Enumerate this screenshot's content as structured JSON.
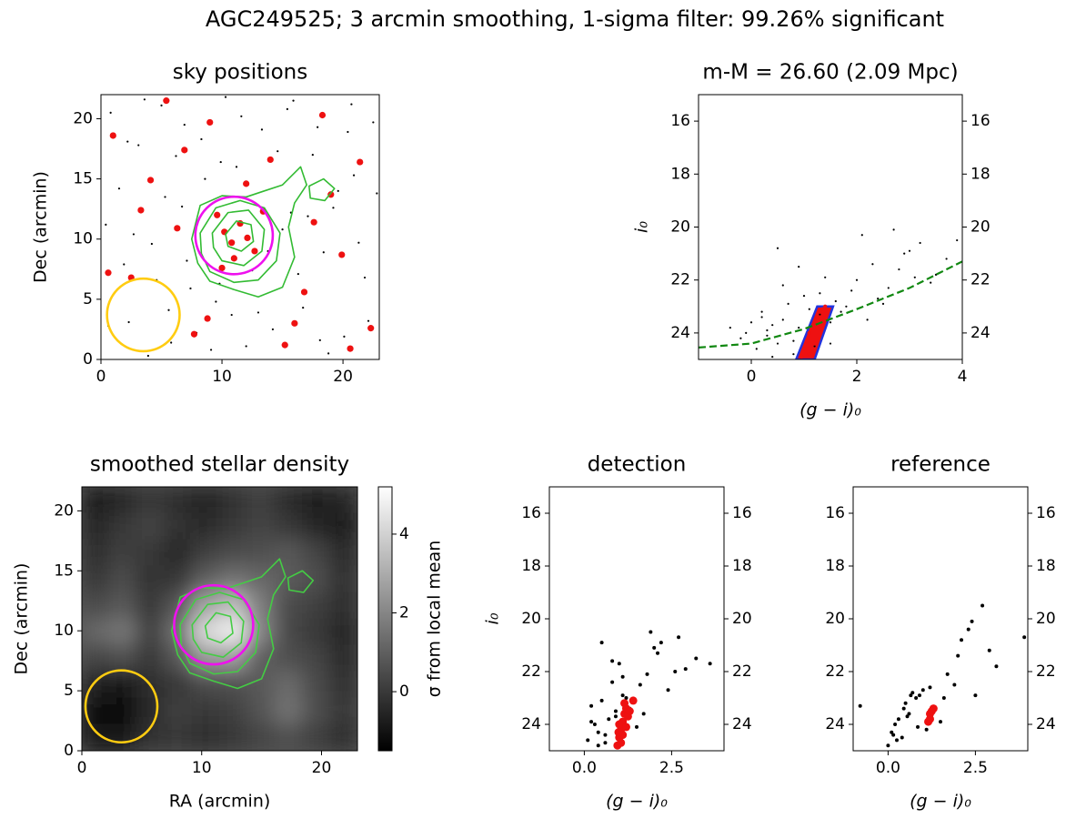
{
  "title": "AGC249525; 3 arcmin smoothing, 1-sigma filter: 99.26% significant",
  "chart_data": [
    {
      "type": "scatter",
      "title": "sky positions",
      "ylabel": "Dec (arcmin)",
      "xlim": [
        0,
        23
      ],
      "ylim": [
        0,
        22
      ],
      "xticks": [
        0,
        10,
        20
      ],
      "yticks": [
        0,
        5,
        10,
        15,
        20
      ],
      "series": [
        {
          "color": "#000000",
          "marker_size": 1.1,
          "x": [
            0.8,
            1.5,
            2.3,
            3.1,
            4.2,
            5.0,
            5.8,
            6.7,
            7.4,
            8.3,
            9.1,
            9.9,
            10.8,
            11.6,
            12.5,
            13.3,
            14.2,
            15.0,
            15.9,
            16.7,
            17.5,
            18.4,
            19.2,
            20.1,
            20.9,
            21.8,
            22.5,
            0.4,
            1.9,
            3.6,
            5.3,
            6.2,
            7.9,
            9.5,
            12.0,
            13.8,
            15.4,
            17.1,
            18.8,
            20.4,
            22.1,
            1.1,
            2.7,
            4.6,
            6.9,
            8.6,
            10.3,
            14.6,
            16.3,
            19.6,
            21.3,
            0.6,
            3.9,
            7.1,
            11.2,
            13.0,
            17.9,
            22.8,
            2.2,
            5.6,
            9.8,
            15.7,
            18.1,
            20.7
          ],
          "y": [
            20.5,
            14.2,
            3.1,
            17.8,
            9.6,
            21.1,
            1.4,
            12.7,
            5.9,
            18.3,
            0.8,
            16.4,
            3.7,
            20.2,
            7.4,
            19.1,
            2.5,
            10.8,
            21.5,
            4.3,
            17.0,
            8.9,
            12.6,
            1.9,
            15.3,
            6.8,
            19.7,
            11.2,
            7.9,
            21.6,
            13.5,
            16.9,
            2.2,
            4.8,
            1.1,
            9.0,
            20.8,
            11.9,
            0.5,
            18.9,
            3.2,
            5.5,
            10.4,
            6.6,
            19.5,
            15.0,
            21.8,
            17.3,
            7.1,
            14.0,
            9.7,
            2.8,
            0.3,
            8.2,
            16.0,
            3.9,
            19.3,
            13.8,
            18.1,
            4.1,
            6.3,
            12.2,
            1.6,
            21.2
          ]
        },
        {
          "color": "#ee1111",
          "marker_size": 3.6,
          "x": [
            1.0,
            2.5,
            4.1,
            6.3,
            7.7,
            9.0,
            10.2,
            10.8,
            11.5,
            12.1,
            12.7,
            11.0,
            9.6,
            13.4,
            8.8,
            15.2,
            16.8,
            18.3,
            19.9,
            21.4,
            22.3,
            3.3,
            5.4,
            14.0,
            17.6,
            20.6,
            0.6,
            6.9,
            16.0,
            19.0,
            12.0,
            10.0
          ],
          "y": [
            18.6,
            6.8,
            14.9,
            10.9,
            2.1,
            19.7,
            10.6,
            9.7,
            11.3,
            10.1,
            9.0,
            8.4,
            12.0,
            12.3,
            3.4,
            1.2,
            5.6,
            20.3,
            8.7,
            16.4,
            2.6,
            12.4,
            21.5,
            16.6,
            11.4,
            0.9,
            7.2,
            17.4,
            3.0,
            13.7,
            14.6,
            7.6
          ]
        }
      ],
      "contours": [
        {
          "color": "#33bb33",
          "x": [
            7.5,
            8.2,
            10,
            12,
            13.5,
            15,
            16.5,
            17,
            16,
            15.5,
            16,
            15,
            13,
            11,
            9,
            8
          ],
          "y": [
            10,
            12.8,
            13.6,
            13.5,
            14,
            14.5,
            16,
            14.5,
            13,
            11,
            8.5,
            6,
            5.2,
            5.8,
            6.5,
            8
          ]
        },
        {
          "color": "#33bb33",
          "x": [
            17.3,
            18.5,
            19.3,
            18.4,
            17.2
          ],
          "y": [
            13.4,
            13.2,
            14.2,
            15,
            14.4
          ]
        },
        {
          "color": "#33bb33",
          "x": [
            8.2,
            9.5,
            11.5,
            13.5,
            14.8,
            14.5,
            13,
            11,
            9,
            8.3
          ],
          "y": [
            10.5,
            12.6,
            13.2,
            12.6,
            10.5,
            8.2,
            6.6,
            6.4,
            7.3,
            8.8
          ]
        },
        {
          "color": "#33bb33",
          "x": [
            9.2,
            10.5,
            12.2,
            13.5,
            13.3,
            11.8,
            10,
            9.3
          ],
          "y": [
            10.5,
            12.2,
            12.4,
            10.8,
            9.0,
            7.8,
            8.2,
            9.3
          ]
        },
        {
          "color": "#33bb33",
          "x": [
            10.3,
            11.2,
            12.4,
            12.6,
            11.6,
            10.5
          ],
          "y": [
            10.4,
            11.5,
            11.2,
            9.8,
            9.0,
            9.4
          ]
        }
      ],
      "circles": [
        {
          "color": "#ee11ee",
          "cx": 11,
          "cy": 10.3,
          "r": 3.2
        },
        {
          "color": "#ffcc11",
          "cx": 3.5,
          "cy": 3.7,
          "r": 3.0
        }
      ]
    },
    {
      "type": "scatter",
      "title": "m-M = 26.60 (2.09 Mpc)",
      "xlabel": "(g − i)₀",
      "ylabel": "i₀",
      "xlim": [
        -1,
        4
      ],
      "ylim": [
        15,
        25
      ],
      "invert_y": true,
      "right_yticks": true,
      "xticks": [
        0,
        2,
        4
      ],
      "yticks": [
        16,
        18,
        20,
        22,
        24
      ],
      "selection": {
        "color": "#ee1111",
        "edgecolor": "#2233dd",
        "x": [
          0.85,
          1.2,
          1.55,
          1.25
        ],
        "y": [
          25,
          25,
          23,
          23
        ]
      },
      "series": [
        {
          "color": "#000000",
          "marker_size": 1.1,
          "x": [
            -0.2,
            0.1,
            0.3,
            0.5,
            0.6,
            0.8,
            0.9,
            1.1,
            1.3,
            1.5,
            0.2,
            0.4,
            0.7,
            1.0,
            1.2,
            1.6,
            1.8,
            0.0,
            0.5,
            0.9,
            1.4,
            2.0,
            2.3,
            2.6,
            2.9,
            3.2,
            3.5,
            1.7,
            2.1,
            2.4,
            2.8,
            3.0,
            3.4,
            3.7,
            2.2,
            2.7,
            1.9,
            0.3,
            0.8,
            -0.4,
            1.1,
            2.5,
            3.1,
            1.5,
            0.6,
            0.2,
            -0.1,
            3.9,
            0.4,
            1.3
          ],
          "y": [
            24.2,
            24.6,
            23.9,
            24.4,
            23.5,
            24.8,
            23.8,
            24.0,
            23.3,
            23.6,
            23.2,
            24.9,
            22.9,
            22.6,
            24.5,
            22.8,
            23.0,
            23.6,
            20.8,
            21.5,
            21.9,
            22.0,
            21.4,
            22.3,
            21.0,
            20.6,
            21.8,
            23.2,
            20.3,
            22.7,
            21.6,
            20.9,
            22.1,
            21.2,
            23.5,
            20.1,
            22.4,
            24.1,
            24.3,
            23.8,
            23.1,
            22.9,
            21.9,
            24.4,
            22.2,
            23.4,
            24.0,
            20.5,
            23.7,
            22.5
          ]
        },
        {
          "color": "#ee1111",
          "marker_size": 2.2,
          "x": [
            0.95,
            1.0,
            1.05,
            1.1,
            1.15,
            1.2,
            1.25,
            1.3,
            1.35,
            1.4,
            1.1,
            1.2
          ],
          "y": [
            24.9,
            24.6,
            24.3,
            24.0,
            23.8,
            23.6,
            23.4,
            23.2,
            23.1,
            23.0,
            24.8,
            24.4
          ]
        }
      ],
      "curve": {
        "color": "#118811",
        "x": [
          -1,
          0,
          1,
          2,
          3,
          4
        ],
        "y": [
          24.55,
          24.4,
          23.85,
          23.1,
          22.3,
          21.3
        ]
      }
    },
    {
      "type": "heatmap",
      "title": "smoothed stellar density",
      "xlabel": "RA (arcmin)",
      "ylabel": "Dec (arcmin)",
      "xlim": [
        0,
        23
      ],
      "ylim": [
        0,
        22
      ],
      "xticks": [
        0,
        10,
        20
      ],
      "yticks": [
        0,
        5,
        10,
        15,
        20
      ],
      "zlim": [
        -1.5,
        5.2
      ],
      "colorbar_ticks": [
        0,
        2,
        4
      ],
      "colorbar_label": "σ from local mean",
      "z": [
        [
          -0.8,
          -0.5,
          0,
          -0.3,
          -0.6,
          -0.2,
          0.2,
          -0.4,
          -0.8,
          -0.5
        ],
        [
          -0.5,
          0,
          0.3,
          -0.2,
          -0.4,
          0,
          0.3,
          0,
          -0.5,
          -0.7
        ],
        [
          -0.3,
          0.2,
          0,
          -0.5,
          0.2,
          0.5,
          0.6,
          0.8,
          0.3,
          -0.4
        ],
        [
          0,
          0.5,
          -0.2,
          0,
          1.0,
          1.5,
          1.2,
          0.9,
          0.6,
          -0.2
        ],
        [
          0.5,
          0.8,
          0,
          0.8,
          2.8,
          3.5,
          1.8,
          0.5,
          0.2,
          -0.3
        ],
        [
          1.2,
          1.6,
          0.2,
          1.5,
          4.2,
          4.8,
          2.0,
          0.4,
          0,
          -0.5
        ],
        [
          0.3,
          0.6,
          0,
          0.8,
          2.5,
          2.6,
          1.0,
          0.6,
          0.3,
          -0.4
        ],
        [
          -0.6,
          -0.9,
          -0.3,
          0,
          0.5,
          0.6,
          0.8,
          1.3,
          0.5,
          -0.2
        ],
        [
          -1.2,
          -1.3,
          -0.4,
          0.2,
          0,
          0.2,
          0.7,
          1.5,
          0.6,
          0
        ],
        [
          -0.9,
          -1.0,
          -0.2,
          0,
          -0.3,
          0,
          0.3,
          0.6,
          0.2,
          -0.3
        ]
      ],
      "contours": [
        {
          "color": "#44cc44",
          "x": [
            7.5,
            8.2,
            10,
            12,
            13.5,
            15,
            16.5,
            17,
            16,
            15.5,
            16,
            15,
            13,
            11,
            9,
            8
          ],
          "y": [
            10,
            12.8,
            13.6,
            13.5,
            14,
            14.5,
            16,
            14.5,
            13,
            11,
            8.5,
            6,
            5.2,
            5.8,
            6.5,
            8
          ]
        },
        {
          "color": "#44cc44",
          "x": [
            17.3,
            18.5,
            19.3,
            18.4,
            17.2
          ],
          "y": [
            13.4,
            13.2,
            14.2,
            15,
            14.4
          ]
        },
        {
          "color": "#44cc44",
          "x": [
            8.2,
            9.5,
            11.5,
            13.5,
            14.8,
            14.5,
            13,
            11,
            9,
            8.3
          ],
          "y": [
            10.5,
            12.6,
            13.2,
            12.6,
            10.5,
            8.2,
            6.6,
            6.4,
            7.3,
            8.8
          ]
        },
        {
          "color": "#44cc44",
          "x": [
            9.2,
            10.5,
            12.2,
            13.5,
            13.3,
            11.8,
            10,
            9.3
          ],
          "y": [
            10.5,
            12.2,
            12.4,
            10.8,
            9.0,
            7.8,
            8.2,
            9.3
          ]
        },
        {
          "color": "#44cc44",
          "x": [
            10.3,
            11.2,
            12.4,
            12.6,
            11.6,
            10.5
          ],
          "y": [
            10.4,
            11.5,
            11.2,
            9.8,
            9.0,
            9.4
          ]
        }
      ],
      "circles": [
        {
          "color": "#ee11ee",
          "cx": 11,
          "cy": 10.5,
          "r": 3.3
        },
        {
          "color": "#ffcc11",
          "cx": 3.3,
          "cy": 3.7,
          "r": 3.0
        }
      ]
    },
    {
      "type": "scatter",
      "title": "detection",
      "xlabel": "(g − i)₀",
      "ylabel": "i₀",
      "xlim": [
        -1,
        4
      ],
      "ylim": [
        15,
        25
      ],
      "invert_y": true,
      "right_yticks": true,
      "xticks": [
        {
          "value": 0,
          "label": "0.0"
        },
        2.5
      ],
      "yticks": [
        16,
        18,
        20,
        22,
        24
      ],
      "series": [
        {
          "color": "#000000",
          "marker_size": 2,
          "x": [
            0.1,
            0.2,
            0.4,
            0.5,
            0.6,
            0.8,
            0.9,
            1.0,
            1.1,
            0.3,
            0.7,
            1.3,
            1.5,
            1.7,
            1.9,
            2.0,
            2.2,
            2.4,
            2.6,
            2.9,
            3.2,
            3.6,
            0.6,
            1.2,
            0.8,
            1.1,
            0.4,
            1.0,
            0.2,
            1.6,
            2.1,
            2.7,
            1.8,
            0.5,
            0.9
          ],
          "y": [
            24.6,
            23.9,
            24.3,
            23.1,
            24.7,
            22.4,
            23.5,
            21.7,
            22.2,
            24.0,
            23.8,
            23.4,
            24.1,
            23.6,
            20.5,
            21.1,
            20.9,
            22.7,
            22.0,
            21.9,
            21.5,
            21.7,
            24.4,
            23.0,
            21.6,
            22.9,
            24.8,
            24.2,
            23.3,
            22.5,
            21.3,
            20.7,
            22.1,
            20.9,
            23.7
          ]
        },
        {
          "color": "#ee1111",
          "marker_size": 4.5,
          "x": [
            0.95,
            1.0,
            1.05,
            1.1,
            1.15,
            1.2,
            1.25,
            1.0,
            1.1,
            1.05,
            1.2,
            1.4,
            1.3,
            0.98,
            1.15
          ],
          "y": [
            24.8,
            24.5,
            24.2,
            23.9,
            23.6,
            23.4,
            23.7,
            24.0,
            24.4,
            24.7,
            24.1,
            23.1,
            23.5,
            24.3,
            23.2
          ]
        }
      ]
    },
    {
      "type": "scatter",
      "title": "reference",
      "xlabel": "(g − i)₀",
      "xlim": [
        -1,
        4
      ],
      "ylim": [
        15,
        25
      ],
      "invert_y": true,
      "right_yticks": true,
      "xticks": [
        {
          "value": 0,
          "label": "0.0"
        },
        2.5
      ],
      "yticks": [
        16,
        18,
        20,
        22,
        24
      ],
      "series": [
        {
          "color": "#000000",
          "marker_size": 2,
          "x": [
            -0.8,
            0.0,
            0.1,
            0.2,
            0.3,
            0.4,
            0.5,
            0.6,
            0.7,
            0.8,
            0.9,
            1.0,
            1.1,
            1.3,
            1.5,
            1.7,
            1.9,
            2.1,
            2.3,
            2.5,
            2.7,
            2.9,
            3.1,
            3.9,
            0.25,
            0.45,
            0.65,
            0.85,
            1.2,
            1.6,
            2.0,
            2.4,
            0.15,
            0.55
          ],
          "y": [
            23.3,
            24.8,
            24.3,
            24.0,
            23.8,
            24.5,
            23.2,
            23.6,
            22.8,
            23.0,
            22.9,
            22.7,
            24.2,
            23.5,
            23.9,
            22.1,
            22.5,
            20.8,
            20.4,
            22.9,
            19.5,
            21.2,
            21.8,
            20.7,
            24.6,
            23.4,
            22.9,
            24.1,
            22.6,
            23.0,
            21.4,
            20.1,
            24.4,
            23.7
          ]
        },
        {
          "color": "#ee1111",
          "marker_size": 4.5,
          "x": [
            1.15,
            1.2,
            1.25,
            1.3,
            1.2
          ],
          "y": [
            23.9,
            23.6,
            23.5,
            23.4,
            23.8
          ]
        }
      ]
    }
  ]
}
